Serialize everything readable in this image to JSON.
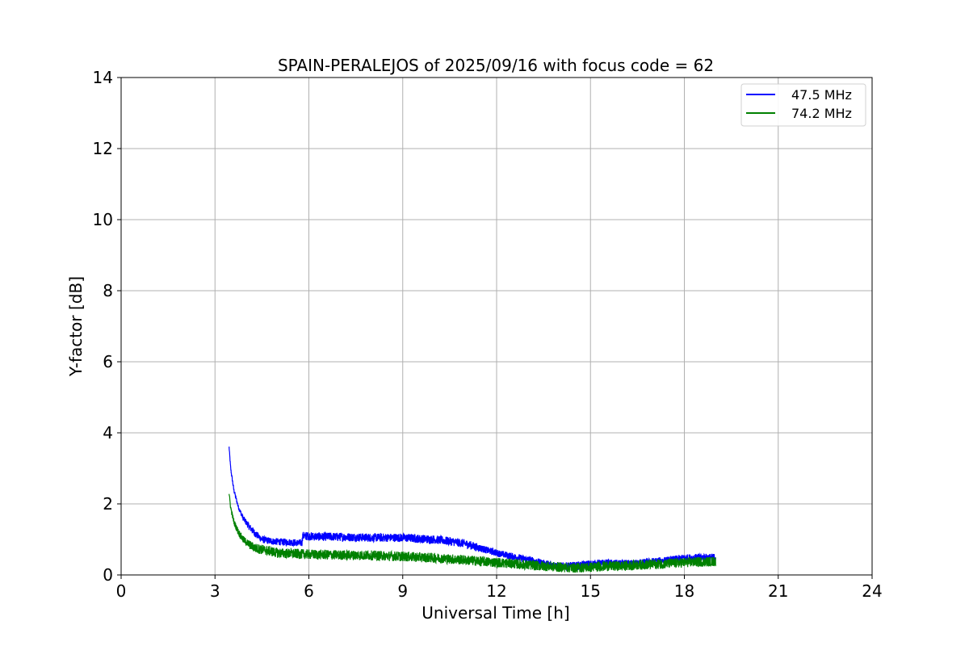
{
  "chart_data": {
    "type": "line",
    "title": "SPAIN-PERALEJOS of 2025/09/16 with focus code = 62",
    "xlabel": "Universal Time [h]",
    "ylabel": "Y-factor [dB]",
    "xlim": [
      0,
      24
    ],
    "ylim": [
      0,
      14
    ],
    "xticks": [
      "0",
      "3",
      "6",
      "9",
      "12",
      "15",
      "18",
      "21",
      "24"
    ],
    "yticks": [
      "0",
      "2",
      "4",
      "6",
      "8",
      "10",
      "12",
      "14"
    ],
    "grid": true,
    "legend_position": "top-right",
    "series": [
      {
        "name": "47.5 MHz",
        "color": "#0000ff",
        "x": [
          3.45,
          3.5,
          3.6,
          3.75,
          3.9,
          4.1,
          4.3,
          4.5,
          4.8,
          5.1,
          5.4,
          5.7,
          5.78,
          5.8,
          6.2,
          7.0,
          8.0,
          9.0,
          9.5,
          10.0,
          10.5,
          11.0,
          11.3,
          11.6,
          12.0,
          12.5,
          13.0,
          13.5,
          14.0,
          14.5,
          15.0,
          15.5,
          16.0,
          16.5,
          17.0,
          17.5,
          18.0,
          18.5,
          19.0
        ],
        "y": [
          3.6,
          3.0,
          2.4,
          1.9,
          1.6,
          1.35,
          1.15,
          1.0,
          0.95,
          0.93,
          0.92,
          0.9,
          0.9,
          1.1,
          1.08,
          1.07,
          1.05,
          1.05,
          1.02,
          1.0,
          0.95,
          0.88,
          0.8,
          0.72,
          0.62,
          0.52,
          0.43,
          0.33,
          0.25,
          0.25,
          0.3,
          0.32,
          0.3,
          0.33,
          0.38,
          0.42,
          0.48,
          0.5,
          0.5
        ],
        "noise": [
          0.04,
          0.06,
          0.06,
          0.06,
          0.08,
          0.1,
          0.1,
          0.1,
          0.1,
          0.1,
          0.1,
          0.1,
          0.1,
          0.12,
          0.12,
          0.12,
          0.12,
          0.12,
          0.12,
          0.12,
          0.12,
          0.12,
          0.12,
          0.1,
          0.1,
          0.1,
          0.1,
          0.1,
          0.1,
          0.12,
          0.12,
          0.12,
          0.12,
          0.1,
          0.1,
          0.1,
          0.1,
          0.1,
          0.1
        ]
      },
      {
        "name": "74.2 MHz",
        "color": "#008000",
        "x": [
          3.45,
          3.5,
          3.6,
          3.75,
          3.9,
          4.1,
          4.3,
          4.6,
          5.0,
          5.5,
          6.0,
          7.0,
          8.0,
          9.0,
          10.0,
          11.0,
          12.0,
          12.5,
          13.0,
          13.5,
          14.0,
          14.5,
          15.0,
          15.5,
          16.0,
          16.5,
          17.0,
          17.5,
          18.0,
          18.5,
          19.0
        ],
        "y": [
          2.3,
          1.9,
          1.5,
          1.2,
          1.0,
          0.85,
          0.75,
          0.7,
          0.62,
          0.6,
          0.58,
          0.56,
          0.55,
          0.52,
          0.48,
          0.42,
          0.35,
          0.32,
          0.28,
          0.25,
          0.22,
          0.2,
          0.22,
          0.25,
          0.25,
          0.28,
          0.3,
          0.32,
          0.35,
          0.37,
          0.38
        ],
        "noise": [
          0.04,
          0.06,
          0.08,
          0.1,
          0.1,
          0.12,
          0.14,
          0.14,
          0.14,
          0.14,
          0.14,
          0.14,
          0.14,
          0.14,
          0.14,
          0.14,
          0.14,
          0.14,
          0.14,
          0.14,
          0.14,
          0.14,
          0.14,
          0.14,
          0.14,
          0.14,
          0.14,
          0.14,
          0.14,
          0.14,
          0.14
        ]
      }
    ]
  }
}
